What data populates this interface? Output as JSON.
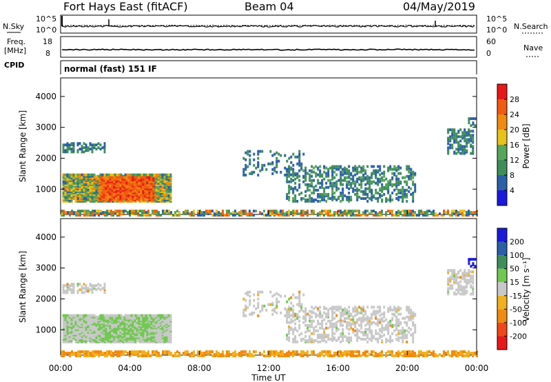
{
  "header": {
    "station": "Fort Hays East (fitACF)",
    "beam": "Beam 04",
    "date": "04/May/2019"
  },
  "strip_labels": {
    "nsky": "N.Sky",
    "nsearch": "N.Search",
    "freq_line1": "Freq.",
    "freq_line2": "[MHz]",
    "nave": "Nave",
    "cpid": "CPID",
    "cpid_value": "normal (fast) 151 IF",
    "noise_ticks": [
      "10^5",
      "10^0"
    ],
    "freq_ticks": [
      "18",
      "8"
    ],
    "nave_ticks": [
      "60",
      "0"
    ]
  },
  "colors": {
    "power_scale": [
      "#1a1adc",
      "#2b5fa8",
      "#3f8e5a",
      "#55a55a",
      "#e8c21a",
      "#f08a10",
      "#f25a10",
      "#e81818"
    ],
    "velocity_scale": [
      "#e81818",
      "#f04818",
      "#f08a10",
      "#f0b020",
      "#c8c8c8",
      "#70c850",
      "#3f8e5a",
      "#2b5fa8",
      "#1a1adc"
    ]
  },
  "chart_data": [
    {
      "type": "heatmap",
      "title": "Power",
      "xlabel": "Time UT",
      "ylabel": "Slant Range [km]",
      "x_ticks": [
        "00:00",
        "04:00",
        "08:00",
        "12:00",
        "16:00",
        "20:00",
        "00:00"
      ],
      "y_ticks": [
        "1000",
        "2000",
        "3000",
        "4000"
      ],
      "ylim": [
        180,
        4600
      ],
      "colorbar": {
        "label": "Power [dB]",
        "ticks": [
          "4",
          "8",
          "12",
          "16",
          "20",
          "24",
          "28"
        ],
        "range": [
          0,
          32
        ]
      }
    },
    {
      "type": "heatmap",
      "title": "Velocity",
      "xlabel": "Time UT",
      "ylabel": "Slant Range [km]",
      "x_ticks": [
        "00:00",
        "04:00",
        "08:00",
        "12:00",
        "16:00",
        "20:00",
        "00:00"
      ],
      "y_ticks": [
        "1000",
        "2000",
        "3000",
        "4000"
      ],
      "ylim": [
        180,
        4600
      ],
      "colorbar": {
        "label": "Velocity [m s⁻¹]",
        "ticks": [
          "200",
          "100",
          "50",
          "15",
          "-15",
          "-50",
          "-100",
          "-200"
        ]
      }
    }
  ]
}
